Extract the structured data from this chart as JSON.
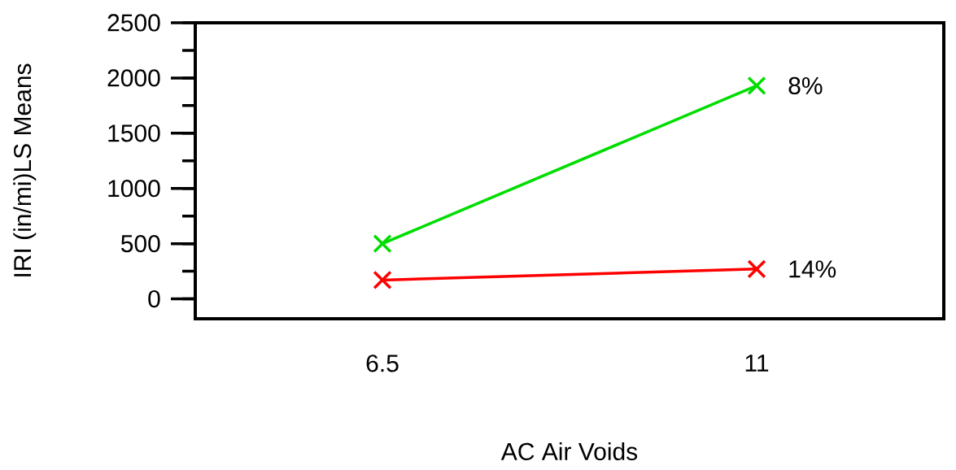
{
  "chart_data": {
    "type": "line",
    "xlabel": "AC Air Voids",
    "ylabel": "IRI (in/mi)LS Means",
    "categories": [
      "6.5",
      "11"
    ],
    "series": [
      {
        "name": "8%",
        "color": "#00dd00",
        "values": [
          500,
          1930
        ],
        "marker": "cross"
      },
      {
        "name": "14%",
        "color": "#ff0000",
        "values": [
          170,
          270
        ],
        "marker": "cross"
      }
    ],
    "ylim": [
      -180,
      2500
    ],
    "yticks": [
      0,
      {
        "value": 250,
        "label": null
      },
      500,
      {
        "value": 750,
        "label": null
      },
      1000,
      {
        "value": 1250,
        "label": null
      },
      1500,
      {
        "value": 1750,
        "label": null
      },
      2000,
      {
        "value": 2250,
        "label": null
      },
      2500
    ],
    "grid": false,
    "legend": false
  }
}
